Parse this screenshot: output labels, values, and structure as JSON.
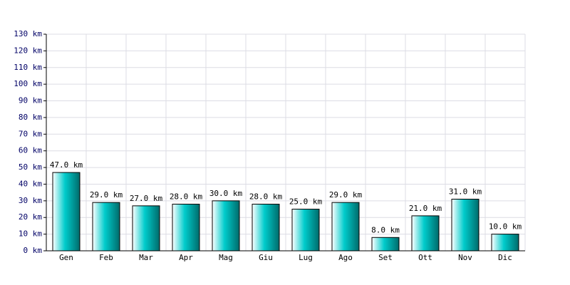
{
  "chart_data": {
    "type": "bar",
    "categories": [
      "Gen",
      "Feb",
      "Mar",
      "Apr",
      "Mag",
      "Giu",
      "Lug",
      "Ago",
      "Set",
      "Ott",
      "Nov",
      "Dic"
    ],
    "values": [
      47,
      29,
      27,
      28,
      30,
      28,
      25,
      29,
      8,
      21,
      31,
      10
    ],
    "value_labels": [
      "47.0 km",
      "29.0 km",
      "27.0 km",
      "28.0 km",
      "30.0 km",
      "28.0 km",
      "25.0 km",
      "29.0 km",
      "8.0 km",
      "21.0 km",
      "31.0 km",
      "10.0 km"
    ],
    "color": "#00cccc",
    "ylim": [
      0,
      130
    ],
    "yticks": [
      {
        "value": 0,
        "label": "0 km"
      },
      {
        "value": 10,
        "label": "10 km"
      },
      {
        "value": 20,
        "label": "20 km"
      },
      {
        "value": 30,
        "label": "30 km"
      },
      {
        "value": 40,
        "label": "40 km"
      },
      {
        "value": 50,
        "label": "50 km"
      },
      {
        "value": 60,
        "label": "60 km"
      },
      {
        "value": 70,
        "label": "70 km"
      },
      {
        "value": 80,
        "label": "80 km"
      },
      {
        "value": 90,
        "label": "90 km"
      },
      {
        "value": 100,
        "label": "100 km"
      },
      {
        "value": 110,
        "label": "110 km"
      },
      {
        "value": 120,
        "label": "120 km"
      },
      {
        "value": 130,
        "label": "130 km"
      }
    ],
    "grid": true
  }
}
